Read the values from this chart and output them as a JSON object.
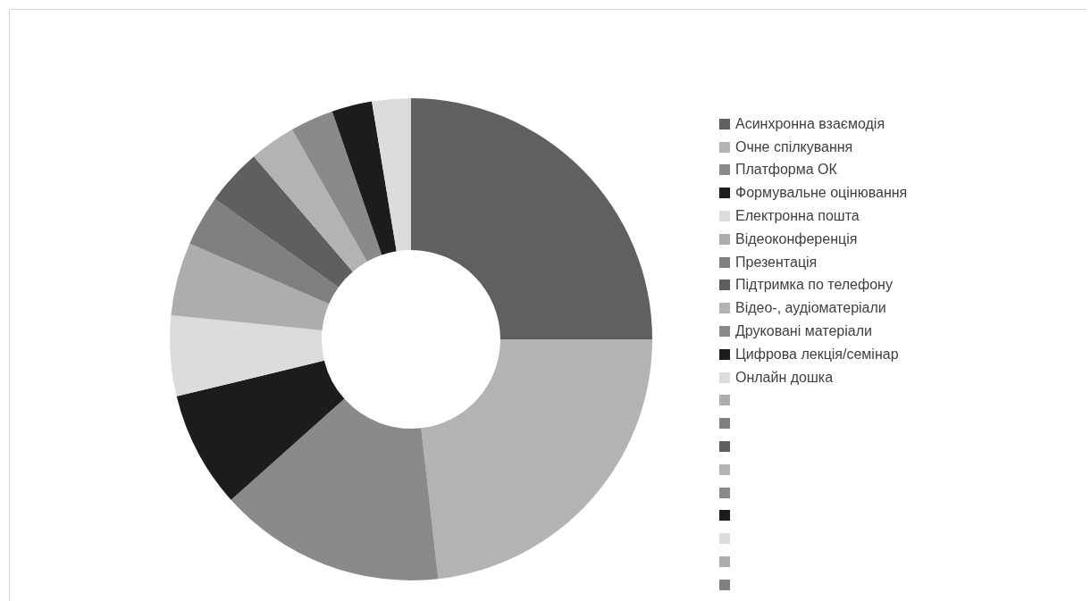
{
  "chart_data": {
    "type": "donut",
    "categories": [
      "Асинхронна взаємодія",
      "Очне спілкування",
      "Платформа ОК",
      "Формувальне оцінювання",
      "Електронна пошта",
      "Відеоконференція",
      "Презентація",
      "Підтримка по телефону",
      "Відео-, аудіоматеріали",
      "Друковані матеріали",
      "Цифрова лекція/семінар",
      "Онлайн дошка",
      null,
      null,
      null,
      null,
      null,
      null,
      null,
      null,
      null
    ],
    "values": [
      25,
      23.2,
      15.2,
      7.8,
      5.4,
      4.9,
      3.4,
      3.8,
      3.1,
      2.9,
      2.7,
      2.6,
      0,
      0,
      0,
      0,
      0,
      0,
      0,
      0,
      0
    ],
    "colors": [
      "#606060",
      "#b3b3b3",
      "#8a8a8a",
      "#1c1c1c",
      "#dcdcdc",
      "#adadad",
      "#808080",
      "#5f5f5f",
      "#b3b3b3",
      "#8a8a8a",
      "#1c1c1c",
      "#dcdcdc",
      "#adadad",
      "#808080",
      "#5f5f5f",
      "#b3b3b3",
      "#8a8a8a",
      "#1c1c1c",
      "#dcdcdc",
      "#adadad",
      "#808080"
    ],
    "legend": "right"
  }
}
